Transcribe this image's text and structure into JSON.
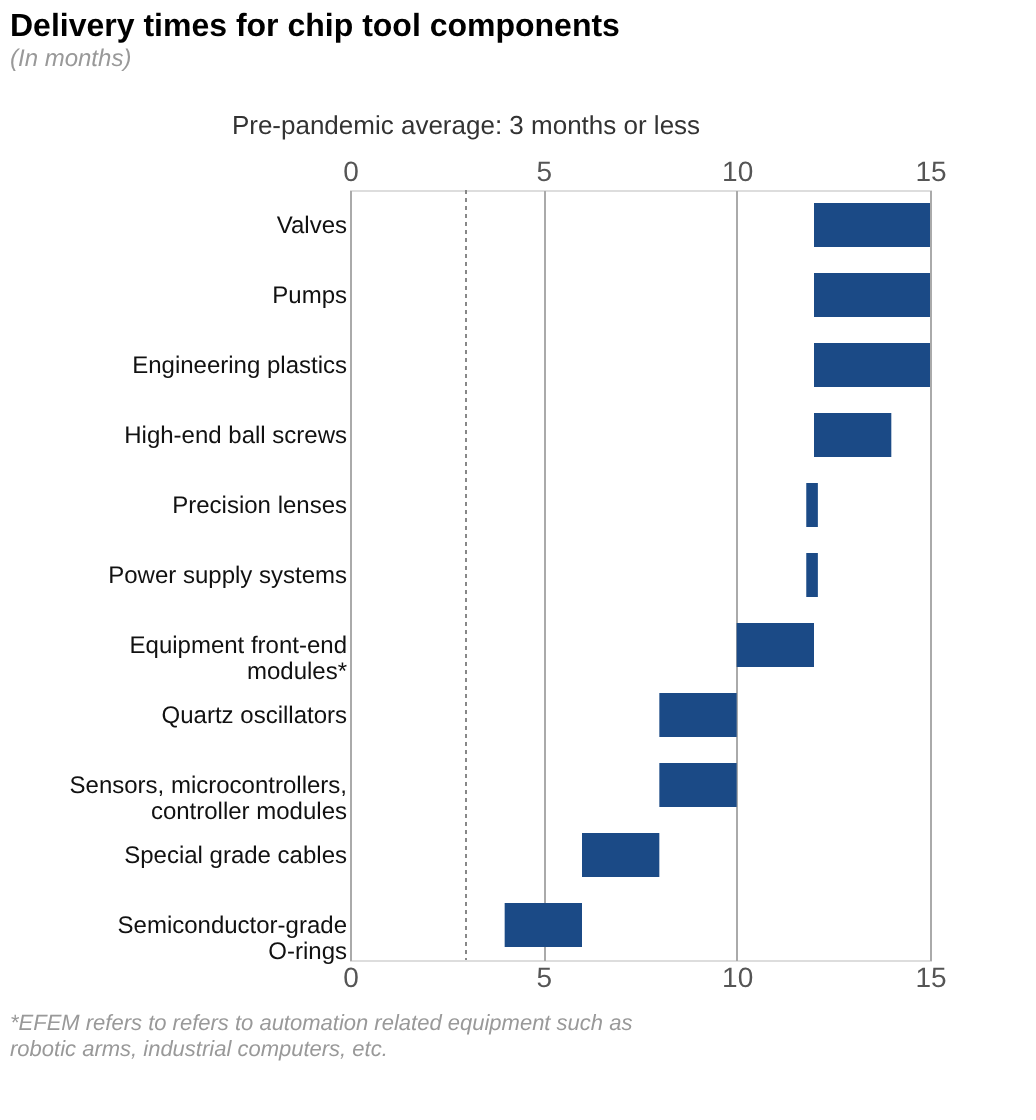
{
  "chart_data": {
    "type": "bar",
    "orientation": "horizontal",
    "title": "Delivery times for chip tool components",
    "subtitle": "(In months)",
    "categories": [
      "Valves",
      "Pumps",
      "Engineering plastics",
      "High-end ball screws",
      "Precision lenses",
      "Power supply systems",
      "Equipment front-end modules*",
      "Quartz oscillators",
      "Sensors, microcontrollers, controller modules",
      "Special grade cables",
      "Semiconductor-grade O-rings"
    ],
    "base": [
      12,
      12,
      12,
      12,
      11.8,
      11.8,
      10,
      8,
      8,
      6,
      4
    ],
    "values": [
      3,
      3,
      3,
      2,
      0.3,
      0.3,
      2,
      2,
      2,
      2,
      2
    ],
    "color": "#1b4a86",
    "xlim": [
      0,
      15
    ],
    "xticks": [
      0,
      5,
      10,
      15
    ],
    "x2lim": [
      0,
      15
    ],
    "x2ticks": [
      0,
      5,
      10,
      15
    ],
    "grid": "x",
    "ref_lines": [
      {
        "axis": "x",
        "value": 3,
        "label": "Pre-pandemic average: 3 months or less",
        "line_style": "dotted",
        "color": "#888888"
      }
    ],
    "annotations": [
      "*EFEM refers to refers to automation related equipment such as robotic arms, industrial computers, etc."
    ]
  }
}
